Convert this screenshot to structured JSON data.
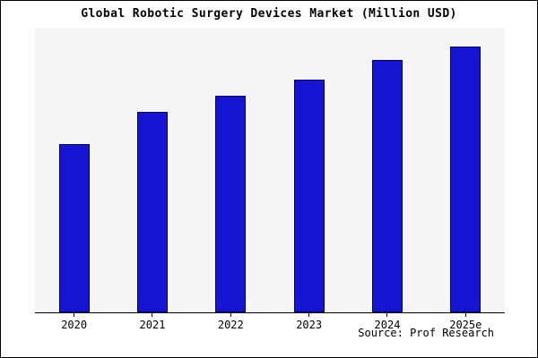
{
  "title": "Global Robotic Surgery Devices Market (Million USD)",
  "source": "Source: Prof Research",
  "colors": {
    "bar_fill": "#1414d2",
    "bar_border": "#00006e",
    "plot_bg": "#f5f5f5",
    "axis": "#000000"
  },
  "chart_data": {
    "type": "bar",
    "title": "Global Robotic Surgery Devices Market (Million USD)",
    "categories": [
      "2020",
      "2021",
      "2022",
      "2023",
      "2024",
      "2025e"
    ],
    "values": [
      62,
      74,
      80,
      86,
      93,
      98
    ],
    "xlabel": "",
    "ylabel": "",
    "ylim": [
      0,
      105
    ],
    "grid": false,
    "legend": false,
    "y_axis_labels_visible": false,
    "annotation": "Source: Prof Research"
  }
}
